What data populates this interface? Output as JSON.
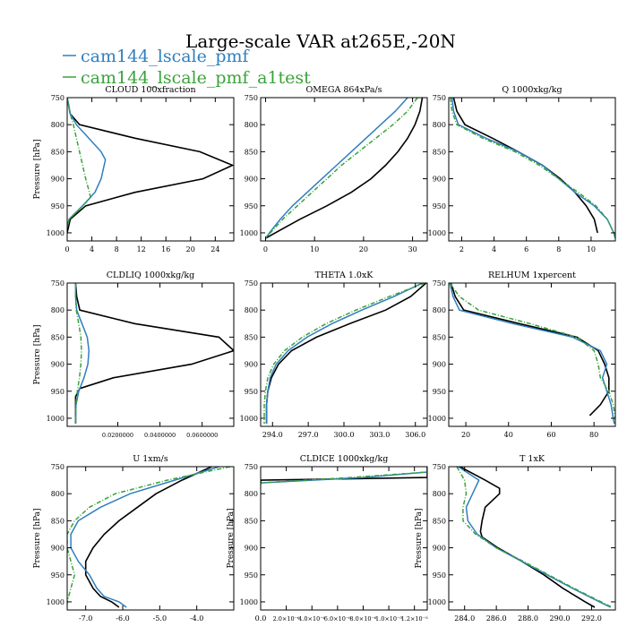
{
  "figure": {
    "title": "Large-scale VAR at265E,-20N",
    "legend": [
      {
        "label": "cam144_lscale_pmf",
        "color": "#2f7fbf"
      },
      {
        "label": "cam144_lscale_pmf_a1test",
        "color": "#3aa33a"
      }
    ]
  },
  "chart_data": [
    {
      "type": "line",
      "title": "CLOUD  100xfraction",
      "ylabel": "Pressure [hPa]",
      "xlim": [
        0,
        27
      ],
      "xticks": [
        0,
        4,
        8,
        12,
        16,
        20,
        24
      ],
      "xticklabels": [
        "0",
        "4",
        "8",
        "12",
        "16",
        "20",
        "24"
      ],
      "ylim": [
        750,
        1015
      ],
      "yticks": [
        750,
        800,
        850,
        900,
        950,
        1000
      ],
      "series": [
        {
          "color": "#000000",
          "dash": false,
          "y": [
            750,
            780,
            800,
            825,
            850,
            875,
            900,
            925,
            950,
            975,
            1000
          ],
          "x": [
            0,
            0.5,
            2,
            11,
            21.5,
            26.8,
            22,
            11,
            3,
            0.5,
            0
          ]
        },
        {
          "color": "#2f7fbf",
          "dash": false,
          "y": [
            750,
            780,
            800,
            825,
            850,
            865,
            875,
            900,
            925,
            950,
            975,
            990
          ],
          "x": [
            0,
            0.5,
            1.5,
            3.5,
            5.5,
            6.2,
            6.0,
            5.5,
            4.5,
            2.5,
            0.3,
            0
          ]
        },
        {
          "color": "#3aa33a",
          "dash": true,
          "y": [
            750,
            780,
            800,
            825,
            850,
            875,
            900,
            925,
            935,
            950,
            975,
            990
          ],
          "x": [
            0,
            0.5,
            1,
            1.5,
            2,
            2.5,
            3,
            3.6,
            3.8,
            2.5,
            0.3,
            0
          ]
        }
      ]
    },
    {
      "type": "line",
      "title": "OMEGA  864xPa/s",
      "ylabel": "",
      "xlim": [
        -1,
        33
      ],
      "xticks": [
        0,
        10,
        20,
        30
      ],
      "xticklabels": [
        "0",
        "10",
        "20",
        "30"
      ],
      "ylim": [
        750,
        1015
      ],
      "yticks": [
        750,
        800,
        850,
        900,
        950,
        1000
      ],
      "series": [
        {
          "color": "#000000",
          "dash": false,
          "y": [
            750,
            775,
            800,
            825,
            850,
            875,
            900,
            925,
            950,
            975,
            1000,
            1010
          ],
          "x": [
            32,
            31.5,
            30.5,
            29,
            27,
            24.5,
            21.5,
            17.5,
            12.5,
            7,
            2,
            0
          ]
        },
        {
          "color": "#2f7fbf",
          "dash": false,
          "y": [
            750,
            775,
            800,
            825,
            850,
            875,
            900,
            925,
            950,
            975,
            1000,
            1010
          ],
          "x": [
            29,
            26.5,
            23.5,
            20.5,
            17.5,
            14.5,
            11.5,
            8.5,
            5.5,
            3,
            0.8,
            0
          ]
        },
        {
          "color": "#3aa33a",
          "dash": true,
          "y": [
            750,
            775,
            800,
            825,
            850,
            875,
            900,
            925,
            950,
            975,
            1000,
            1010
          ],
          "x": [
            31,
            29,
            26,
            22.5,
            19,
            15.5,
            12.5,
            9.5,
            6.5,
            3.5,
            1,
            0
          ]
        }
      ]
    },
    {
      "type": "line",
      "title": "Q  1000xkg/kg",
      "ylabel": "",
      "xlim": [
        1.2,
        11.5
      ],
      "xticks": [
        2,
        4,
        6,
        8,
        10
      ],
      "xticklabels": [
        "2",
        "4",
        "6",
        "8",
        "10"
      ],
      "ylim": [
        750,
        1015
      ],
      "yticks": [
        750,
        800,
        850,
        900,
        950,
        1000
      ],
      "series": [
        {
          "color": "#000000",
          "dash": false,
          "y": [
            750,
            775,
            800,
            825,
            850,
            875,
            900,
            925,
            950,
            975,
            1000
          ],
          "x": [
            1.5,
            1.7,
            2.2,
            3.9,
            5.5,
            7.0,
            8.1,
            9.0,
            9.7,
            10.2,
            10.4
          ]
        },
        {
          "color": "#2f7fbf",
          "dash": false,
          "y": [
            750,
            775,
            800,
            825,
            850,
            875,
            900,
            925,
            950,
            975,
            1000,
            1010
          ],
          "x": [
            1.4,
            1.5,
            1.8,
            3.5,
            5.5,
            7.0,
            8.0,
            9.0,
            10.2,
            11.0,
            11.4,
            11.5
          ]
        },
        {
          "color": "#3aa33a",
          "dash": true,
          "y": [
            750,
            775,
            800,
            825,
            850,
            875,
            900,
            925,
            950,
            975,
            1000,
            1010
          ],
          "x": [
            1.3,
            1.4,
            1.7,
            3.3,
            5.3,
            6.8,
            8.0,
            9.2,
            10.3,
            11.0,
            11.4,
            11.5
          ]
        }
      ]
    },
    {
      "type": "line",
      "title": "CLDLIQ  1000xkg/kg",
      "ylabel": "Pressure [hPa]",
      "xlim": [
        -0.004,
        0.075
      ],
      "xticks": [
        0.02,
        0.04,
        0.06
      ],
      "xticklabels": [
        "0.0200000",
        "0.0400000",
        "0.0600000"
      ],
      "ylim": [
        750,
        1015
      ],
      "yticks": [
        750,
        800,
        850,
        900,
        950,
        1000
      ],
      "series": [
        {
          "color": "#000000",
          "dash": false,
          "y": [
            750,
            775,
            800,
            825,
            850,
            875,
            900,
            925,
            945,
            960,
            975,
            1000,
            1010
          ],
          "x": [
            0,
            0.0005,
            0.002,
            0.028,
            0.068,
            0.075,
            0.055,
            0.018,
            0.002,
            0,
            0,
            0,
            0
          ]
        },
        {
          "color": "#2f7fbf",
          "dash": false,
          "y": [
            750,
            775,
            800,
            825,
            850,
            875,
            900,
            925,
            950,
            975,
            1000,
            1010
          ],
          "x": [
            0,
            0,
            0.0005,
            0.003,
            0.0055,
            0.0063,
            0.0058,
            0.004,
            0.0015,
            0.0002,
            0,
            0
          ]
        },
        {
          "color": "#3aa33a",
          "dash": true,
          "y": [
            750,
            775,
            800,
            825,
            850,
            875,
            900,
            925,
            950,
            975,
            1000,
            1010
          ],
          "x": [
            0,
            0,
            0.0003,
            0.0015,
            0.0025,
            0.0028,
            0.0025,
            0.0018,
            0.0008,
            0.0001,
            0,
            0
          ]
        }
      ]
    },
    {
      "type": "line",
      "title": "THETA  1.0xK",
      "ylabel": "",
      "xlim": [
        293,
        307
      ],
      "xticks": [
        294,
        297,
        300,
        303,
        306
      ],
      "xticklabels": [
        "294.0",
        "297.0",
        "300.0",
        "303.0",
        "306.0"
      ],
      "ylim": [
        750,
        1015
      ],
      "yticks": [
        750,
        800,
        850,
        900,
        950,
        1000
      ],
      "series": [
        {
          "color": "#000000",
          "dash": false,
          "y": [
            750,
            775,
            800,
            825,
            850,
            875,
            900,
            925,
            950,
            975,
            1000,
            1010
          ],
          "x": [
            306.9,
            305.6,
            303.5,
            300.5,
            297.7,
            295.6,
            294.5,
            293.9,
            293.6,
            293.5,
            293.5,
            293.5
          ]
        },
        {
          "color": "#2f7fbf",
          "dash": false,
          "y": [
            750,
            775,
            800,
            825,
            850,
            875,
            900,
            925,
            950,
            975,
            1000,
            1010
          ],
          "x": [
            306.6,
            304.2,
            301.5,
            299.0,
            296.9,
            295.3,
            294.3,
            293.8,
            293.6,
            293.5,
            293.5,
            293.5
          ]
        },
        {
          "color": "#3aa33a",
          "dash": true,
          "y": [
            750,
            775,
            800,
            825,
            850,
            875,
            900,
            925,
            950,
            975,
            1000,
            1010
          ],
          "x": [
            306.8,
            303.8,
            301.0,
            298.5,
            296.5,
            295.0,
            294.1,
            293.6,
            293.4,
            293.3,
            293.3,
            293.3
          ]
        }
      ]
    },
    {
      "type": "line",
      "title": "RELHUM  1xpercent",
      "ylabel": "",
      "xlim": [
        12,
        90
      ],
      "xticks": [
        20,
        40,
        60,
        80
      ],
      "xticklabels": [
        "20",
        "40",
        "60",
        "80"
      ],
      "ylim": [
        750,
        1015
      ],
      "yticks": [
        750,
        800,
        850,
        900,
        950,
        1000
      ],
      "series": [
        {
          "color": "#000000",
          "dash": false,
          "y": [
            750,
            775,
            800,
            825,
            850,
            875,
            900,
            925,
            950,
            975,
            995
          ],
          "x": [
            13,
            15,
            19,
            45,
            72,
            82,
            85,
            87,
            87,
            83,
            78
          ]
        },
        {
          "color": "#2f7fbf",
          "dash": false,
          "y": [
            750,
            775,
            800,
            825,
            850,
            875,
            900,
            925,
            950,
            975,
            1000,
            1010
          ],
          "x": [
            12.5,
            14,
            17,
            42,
            70,
            83,
            86,
            84,
            86,
            88,
            89,
            89.5
          ]
        },
        {
          "color": "#3aa33a",
          "dash": true,
          "y": [
            750,
            775,
            800,
            825,
            850,
            875,
            900,
            925,
            950,
            975,
            1000,
            1010
          ],
          "x": [
            12.5,
            17,
            26,
            50,
            72,
            80,
            82,
            83,
            87,
            89,
            90,
            90
          ]
        }
      ]
    },
    {
      "type": "line",
      "title": "U  1xm/s",
      "ylabel": "Pressure [hPa]",
      "xlim": [
        -7.5,
        -3.0
      ],
      "xticks": [
        -7,
        -6,
        -5,
        -4
      ],
      "xticklabels": [
        "-7.0",
        "-6.0",
        "-5.0",
        "-4.0"
      ],
      "ylim": [
        750,
        1015
      ],
      "yticks": [
        750,
        800,
        850,
        900,
        950,
        1000
      ],
      "series": [
        {
          "color": "#000000",
          "dash": false,
          "y": [
            750,
            775,
            800,
            825,
            850,
            875,
            900,
            925,
            950,
            975,
            990,
            1000,
            1010
          ],
          "x": [
            -3.6,
            -4.4,
            -5.1,
            -5.6,
            -6.1,
            -6.5,
            -6.8,
            -7.0,
            -7.0,
            -6.8,
            -6.6,
            -6.3,
            -6.1
          ]
        },
        {
          "color": "#2f7fbf",
          "dash": false,
          "y": [
            750,
            775,
            800,
            825,
            850,
            875,
            900,
            925,
            950,
            975,
            990,
            1000,
            1010
          ],
          "x": [
            -3.4,
            -4.6,
            -5.8,
            -6.6,
            -7.2,
            -7.4,
            -7.4,
            -7.2,
            -6.9,
            -6.7,
            -6.5,
            -6.1,
            -5.9
          ]
        },
        {
          "color": "#3aa33a",
          "dash": true,
          "y": [
            750,
            775,
            800,
            825,
            850,
            875,
            900,
            925,
            950,
            975,
            1000,
            1010
          ],
          "x": [
            -3.1,
            -4.8,
            -6.2,
            -6.9,
            -7.3,
            -7.5,
            -7.5,
            -7.4,
            -7.3,
            -7.4,
            -7.5,
            -7.5
          ]
        }
      ]
    },
    {
      "type": "line",
      "title": "CLDICE  1000xkg/kg",
      "ylabel": "Pressure [hPa]",
      "xlim": [
        0,
        1.3e-05
      ],
      "xticks": [
        0,
        2e-06,
        4e-06,
        6e-06,
        8e-06,
        1e-05,
        1.2e-05
      ],
      "xticklabels": [
        "0.0",
        "2.0×10⁻⁶",
        "4.0×10⁻⁶",
        "6.0×10⁻⁶",
        "8.0×10⁻⁶",
        "1.0×10⁻⁵",
        "1.2×10⁻⁵"
      ],
      "ylim": [
        750,
        1015
      ],
      "yticks": [
        750,
        800,
        850,
        900,
        950,
        1000
      ],
      "series": [
        {
          "color": "#000000",
          "dash": false,
          "y": [
            750,
            765,
            770,
            775,
            780
          ],
          "x": [
            1.3e-05,
            1.3e-05,
            1.3e-05,
            0,
            0
          ]
        },
        {
          "color": "#2f7fbf",
          "dash": false,
          "y": [
            750,
            760,
            770,
            780
          ],
          "x": [
            1.3e-05,
            1.3e-05,
            8e-06,
            0
          ]
        },
        {
          "color": "#3aa33a",
          "dash": true,
          "y": [
            750,
            760,
            770,
            780,
            790
          ],
          "x": [
            1.3e-05,
            1.3e-05,
            7e-06,
            0,
            0
          ]
        }
      ]
    },
    {
      "type": "line",
      "title": "T  1xK",
      "ylabel": "Pressure [hPa]",
      "xlim": [
        283,
        293.5
      ],
      "xticks": [
        284,
        286,
        288,
        290,
        292
      ],
      "xticklabels": [
        "284.0",
        "286.0",
        "288.0",
        "290.0",
        "292.0"
      ],
      "ylim": [
        750,
        1015
      ],
      "yticks": [
        750,
        800,
        850,
        900,
        950,
        1000
      ],
      "series": [
        {
          "color": "#000000",
          "dash": false,
          "y": [
            750,
            775,
            790,
            800,
            825,
            850,
            870,
            880,
            900,
            925,
            950,
            975,
            1000,
            1010
          ],
          "x": [
            283.7,
            285.3,
            286.2,
            286.2,
            285.3,
            285.1,
            285.0,
            285.1,
            286.1,
            287.6,
            289.0,
            290.2,
            291.6,
            292.2
          ]
        },
        {
          "color": "#2f7fbf",
          "dash": false,
          "y": [
            750,
            775,
            800,
            825,
            850,
            875,
            900,
            925,
            950,
            975,
            1000,
            1010
          ],
          "x": [
            283.6,
            284.9,
            284.5,
            284.1,
            284.2,
            284.8,
            286.0,
            287.6,
            289.2,
            290.8,
            292.5,
            293.2
          ]
        },
        {
          "color": "#3aa33a",
          "dash": true,
          "y": [
            750,
            775,
            800,
            825,
            850,
            875,
            900,
            925,
            950,
            975,
            1000,
            1010
          ],
          "x": [
            283.5,
            284.0,
            284.1,
            283.9,
            283.9,
            284.7,
            286.0,
            287.7,
            289.3,
            290.9,
            292.6,
            293.3
          ]
        }
      ]
    }
  ]
}
